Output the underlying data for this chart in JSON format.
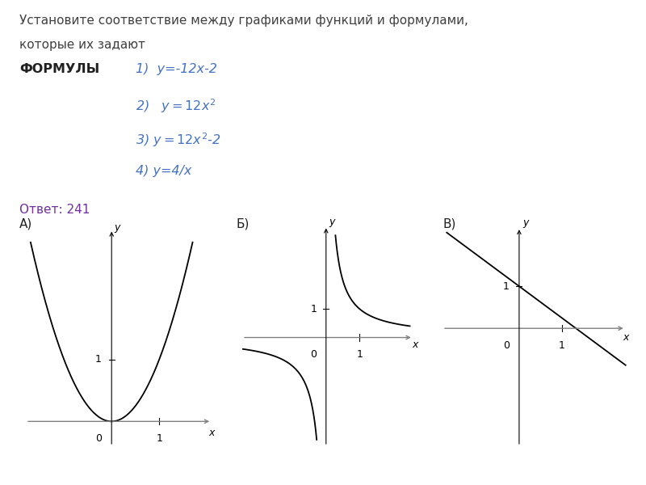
{
  "title_text": "Установите соответствие между графиками функций и формулами,",
  "title_text2": "которые их задают",
  "formulas_label": "ФОРМУЛЫ",
  "formula1": "1)  y=-12x-2",
  "formula2": "2)   y=12x²",
  "formula3": "3) y=12x²-2",
  "formula4": "4) y=4/x",
  "answer_text": "Ответ: 241",
  "formula_color": "#4472C4",
  "answer_color": "#7030A0",
  "background_color": "#ffffff",
  "title_fontsize": 11,
  "formula_fontsize": 11.5,
  "label_fontsize": 11
}
